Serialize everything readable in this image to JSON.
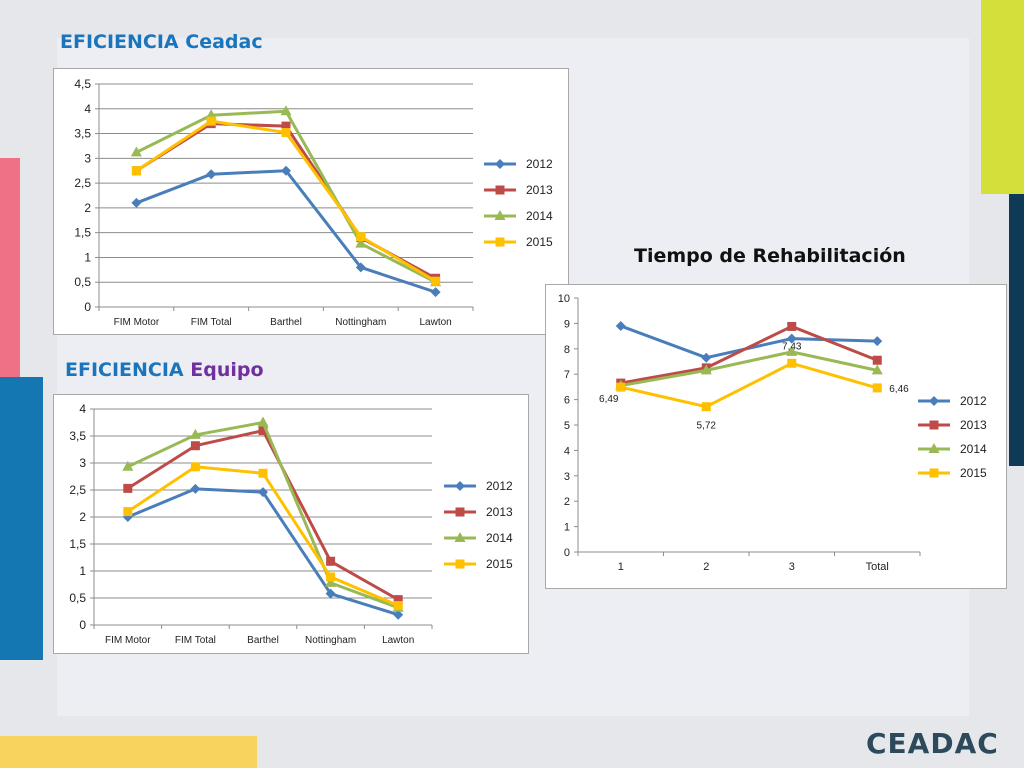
{
  "slide": {
    "heading_ceadac_prefix": "EFICIENCIA",
    "heading_ceadac_suffix": "Ceadac",
    "heading_equipo_prefix": "EFICIENCIA",
    "heading_equipo_suffix": "Equipo",
    "heading_tiempo": "Tiempo de Rehabilitación",
    "logo_text": "CEADAC"
  },
  "colors": {
    "heading_blue": "#1b75bc",
    "heading_purple": "#7030a0",
    "bar_pink": "#ef7185",
    "bar_blue": "#1577b2",
    "bar_yellow": "#f8d35e",
    "bar_lime": "#d4df3b",
    "bar_navy": "#0f3a55"
  },
  "chart_data": [
    {
      "type": "line",
      "categories": [
        "FIM Motor",
        "FIM Total",
        "Barthel",
        "Nottingham",
        "Lawton"
      ],
      "ylim": [
        0,
        4.5
      ],
      "yticks": [
        "0",
        "0,5",
        "1",
        "1,5",
        "2",
        "2,5",
        "3",
        "3,5",
        "4",
        "4,5"
      ],
      "grid": true,
      "legend": "right",
      "series": [
        {
          "name": "2012",
          "values": [
            2.1,
            2.68,
            2.75,
            0.8,
            0.3
          ],
          "color": "#4a7ebb",
          "marker": "diamond"
        },
        {
          "name": "2013",
          "values": [
            2.75,
            3.7,
            3.65,
            1.4,
            0.58
          ],
          "color": "#be4b48",
          "marker": "square"
        },
        {
          "name": "2014",
          "values": [
            3.12,
            3.87,
            3.95,
            1.28,
            0.5
          ],
          "color": "#98b954",
          "marker": "triangle"
        },
        {
          "name": "2015",
          "values": [
            2.75,
            3.75,
            3.52,
            1.42,
            0.52
          ],
          "color": "#ffc000",
          "marker": "square"
        }
      ]
    },
    {
      "type": "line",
      "categories": [
        "FIM Motor",
        "FIM Total",
        "Barthel",
        "Nottingham",
        "Lawton"
      ],
      "ylim": [
        0,
        4
      ],
      "yticks": [
        "0",
        "0,5",
        "1",
        "1,5",
        "2",
        "2,5",
        "3",
        "3,5",
        "4"
      ],
      "grid": true,
      "legend": "right",
      "series": [
        {
          "name": "2012",
          "values": [
            2.0,
            2.52,
            2.46,
            0.58,
            0.19
          ],
          "color": "#4a7ebb",
          "marker": "diamond"
        },
        {
          "name": "2013",
          "values": [
            2.53,
            3.32,
            3.6,
            1.18,
            0.47
          ],
          "color": "#be4b48",
          "marker": "square"
        },
        {
          "name": "2014",
          "values": [
            2.93,
            3.52,
            3.75,
            0.78,
            0.32
          ],
          "color": "#98b954",
          "marker": "triangle"
        },
        {
          "name": "2015",
          "values": [
            2.1,
            2.93,
            2.81,
            0.89,
            0.36
          ],
          "color": "#ffc000",
          "marker": "square"
        }
      ]
    },
    {
      "type": "line",
      "categories": [
        "1",
        "2",
        "3",
        "Total"
      ],
      "ylim": [
        0,
        10
      ],
      "yticks": [
        "0",
        "1",
        "2",
        "3",
        "4",
        "5",
        "6",
        "7",
        "8",
        "9",
        "10"
      ],
      "grid": false,
      "legend": "right",
      "data_labels": [
        {
          "series": 3,
          "index": 0,
          "text": "6,49"
        },
        {
          "series": 3,
          "index": 1,
          "text": "5,72"
        },
        {
          "series": 3,
          "index": 2,
          "text": "7,43"
        },
        {
          "series": 3,
          "index": 3,
          "text": "6,46"
        }
      ],
      "series": [
        {
          "name": "2012",
          "values": [
            8.9,
            7.65,
            8.4,
            8.3
          ],
          "color": "#4a7ebb",
          "marker": "diamond"
        },
        {
          "name": "2013",
          "values": [
            6.65,
            7.25,
            8.88,
            7.55
          ],
          "color": "#be4b48",
          "marker": "square"
        },
        {
          "name": "2014",
          "values": [
            6.55,
            7.15,
            7.88,
            7.15
          ],
          "color": "#98b954",
          "marker": "triangle"
        },
        {
          "name": "2015",
          "values": [
            6.49,
            5.72,
            7.43,
            6.46
          ],
          "color": "#ffc000",
          "marker": "square"
        }
      ]
    }
  ]
}
